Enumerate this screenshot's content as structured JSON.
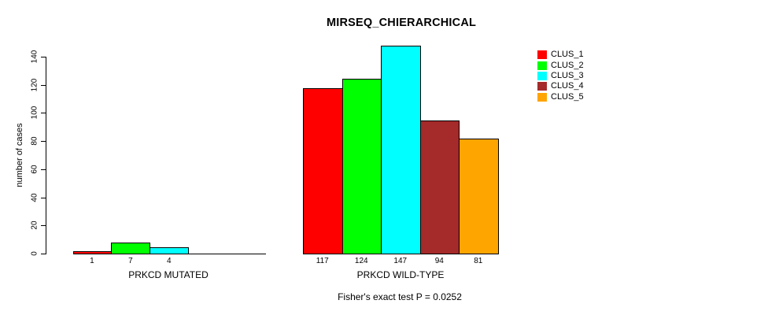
{
  "title": "MIRSEQ_CHIERARCHICAL",
  "annotation": "Fisher's exact test P = 0.0252",
  "chart_data": {
    "type": "bar",
    "title": "MIRSEQ_CHIERARCHICAL",
    "xlabel": "",
    "ylabel": "number of cases",
    "ylim": [
      0,
      140
    ],
    "yticks": [
      0,
      20,
      40,
      60,
      80,
      100,
      120,
      140
    ],
    "grid": false,
    "legend_position": "top-right",
    "series": [
      {
        "name": "CLUS_1",
        "color": "#ff0000"
      },
      {
        "name": "CLUS_2",
        "color": "#00ff00"
      },
      {
        "name": "CLUS_3",
        "color": "#00ffff"
      },
      {
        "name": "CLUS_4",
        "color": "#a52a2a"
      },
      {
        "name": "CLUS_5",
        "color": "#ffa500"
      }
    ],
    "groups": [
      {
        "label": "PRKCD MUTATED",
        "values": [
          1,
          7,
          4,
          0,
          0
        ],
        "value_labels": [
          "1",
          "7",
          "4",
          "",
          ""
        ]
      },
      {
        "label": "PRKCD WILD-TYPE",
        "values": [
          117,
          124,
          147,
          94,
          81
        ],
        "value_labels": [
          "117",
          "124",
          "147",
          "94",
          "81"
        ]
      }
    ]
  }
}
